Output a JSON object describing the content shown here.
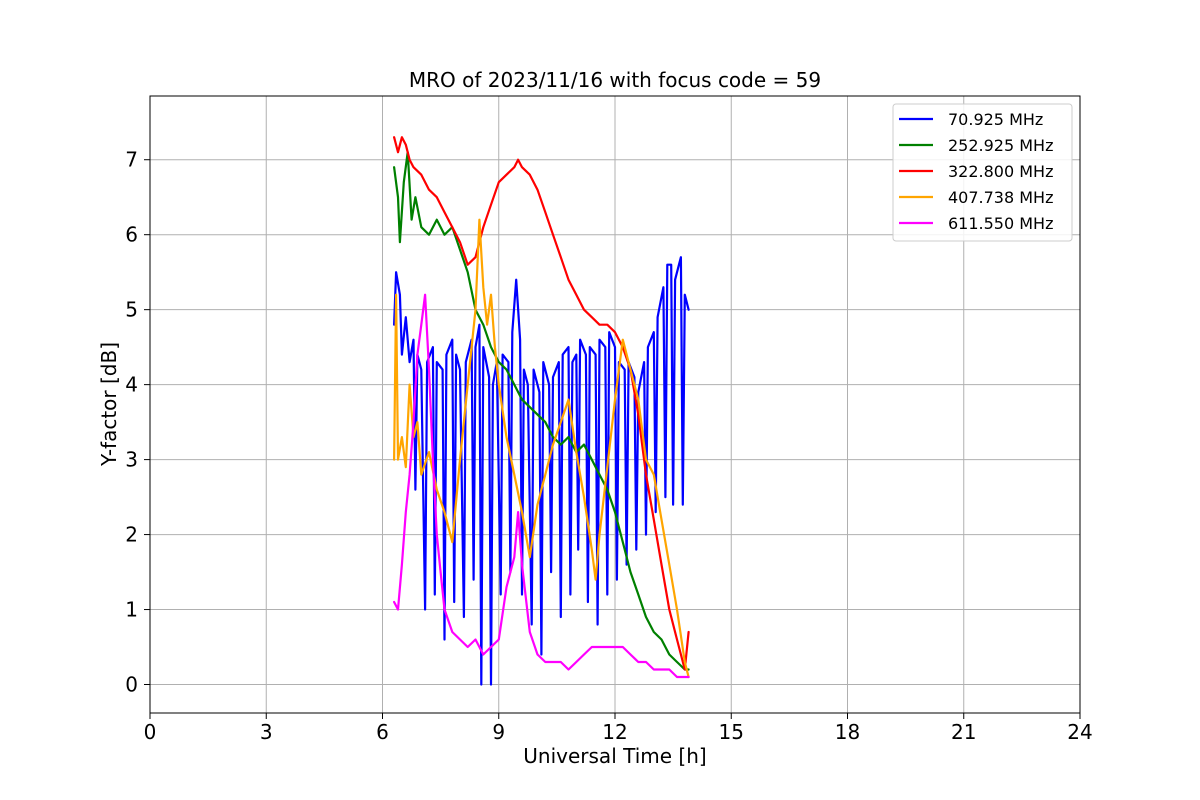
{
  "chart_data": {
    "type": "line",
    "title": "MRO of 2023/11/16 with focus code = 59",
    "xlabel": "Universal Time [h]",
    "ylabel": "Y-factor [dB]",
    "xlim": [
      0,
      24
    ],
    "ylim": [
      -0.38,
      7.85
    ],
    "xticks": [
      0,
      3,
      6,
      9,
      12,
      15,
      18,
      21,
      24
    ],
    "yticks": [
      0,
      1,
      2,
      3,
      4,
      5,
      6,
      7
    ],
    "grid": true,
    "legend": "top-right",
    "series": [
      {
        "name": " 70.925 MHz",
        "color": "#0000ff",
        "points": [
          [
            6.3,
            4.8
          ],
          [
            6.35,
            5.5
          ],
          [
            6.45,
            5.2
          ],
          [
            6.5,
            4.4
          ],
          [
            6.6,
            4.9
          ],
          [
            6.7,
            4.3
          ],
          [
            6.8,
            4.6
          ],
          [
            6.85,
            2.6
          ],
          [
            6.9,
            4.4
          ],
          [
            7.0,
            4.2
          ],
          [
            7.1,
            1.0
          ],
          [
            7.15,
            4.3
          ],
          [
            7.3,
            4.5
          ],
          [
            7.35,
            1.2
          ],
          [
            7.4,
            4.3
          ],
          [
            7.55,
            4.2
          ],
          [
            7.6,
            0.6
          ],
          [
            7.65,
            4.4
          ],
          [
            7.8,
            4.6
          ],
          [
            7.85,
            1.1
          ],
          [
            7.9,
            4.4
          ],
          [
            8.0,
            4.2
          ],
          [
            8.1,
            0.9
          ],
          [
            8.15,
            4.3
          ],
          [
            8.3,
            4.6
          ],
          [
            8.35,
            1.4
          ],
          [
            8.4,
            4.5
          ],
          [
            8.5,
            4.8
          ],
          [
            8.55,
            0.0
          ],
          [
            8.6,
            4.5
          ],
          [
            8.75,
            4.1
          ],
          [
            8.8,
            0.0
          ],
          [
            8.85,
            4.0
          ],
          [
            8.95,
            4.3
          ],
          [
            9.05,
            1.2
          ],
          [
            9.1,
            4.4
          ],
          [
            9.25,
            4.3
          ],
          [
            9.3,
            1.5
          ],
          [
            9.35,
            4.7
          ],
          [
            9.45,
            5.4
          ],
          [
            9.55,
            4.6
          ],
          [
            9.6,
            1.2
          ],
          [
            9.65,
            4.2
          ],
          [
            9.75,
            4.0
          ],
          [
            9.85,
            0.8
          ],
          [
            9.9,
            4.2
          ],
          [
            10.05,
            3.9
          ],
          [
            10.1,
            0.4
          ],
          [
            10.15,
            4.3
          ],
          [
            10.3,
            4.0
          ],
          [
            10.35,
            1.5
          ],
          [
            10.4,
            4.1
          ],
          [
            10.55,
            4.3
          ],
          [
            10.6,
            0.9
          ],
          [
            10.65,
            4.4
          ],
          [
            10.8,
            4.5
          ],
          [
            10.85,
            1.2
          ],
          [
            10.9,
            4.3
          ],
          [
            11.0,
            4.4
          ],
          [
            11.05,
            1.8
          ],
          [
            11.1,
            4.6
          ],
          [
            11.25,
            4.4
          ],
          [
            11.3,
            1.1
          ],
          [
            11.35,
            4.5
          ],
          [
            11.5,
            4.4
          ],
          [
            11.55,
            0.8
          ],
          [
            11.6,
            4.6
          ],
          [
            11.75,
            4.5
          ],
          [
            11.8,
            1.2
          ],
          [
            11.85,
            4.7
          ],
          [
            12.0,
            4.5
          ],
          [
            12.05,
            1.4
          ],
          [
            12.1,
            4.3
          ],
          [
            12.25,
            4.2
          ],
          [
            12.3,
            1.6
          ],
          [
            12.35,
            4.3
          ],
          [
            12.5,
            4.1
          ],
          [
            12.55,
            1.8
          ],
          [
            12.6,
            3.9
          ],
          [
            12.75,
            4.3
          ],
          [
            12.8,
            2.0
          ],
          [
            12.85,
            4.5
          ],
          [
            13.0,
            4.7
          ],
          [
            13.05,
            2.3
          ],
          [
            13.1,
            4.9
          ],
          [
            13.25,
            5.3
          ],
          [
            13.3,
            2.5
          ],
          [
            13.35,
            5.6
          ],
          [
            13.45,
            5.6
          ],
          [
            13.5,
            2.4
          ],
          [
            13.55,
            5.4
          ],
          [
            13.7,
            5.7
          ],
          [
            13.75,
            2.4
          ],
          [
            13.8,
            5.2
          ],
          [
            13.9,
            5.0
          ]
        ]
      },
      {
        "name": "252.925 MHz",
        "color": "#008000",
        "points": [
          [
            6.3,
            6.9
          ],
          [
            6.4,
            6.5
          ],
          [
            6.45,
            5.9
          ],
          [
            6.55,
            6.7
          ],
          [
            6.65,
            7.1
          ],
          [
            6.75,
            6.2
          ],
          [
            6.85,
            6.5
          ],
          [
            7.0,
            6.1
          ],
          [
            7.2,
            6.0
          ],
          [
            7.4,
            6.2
          ],
          [
            7.6,
            6.0
          ],
          [
            7.8,
            6.1
          ],
          [
            8.0,
            5.8
          ],
          [
            8.2,
            5.5
          ],
          [
            8.4,
            5.0
          ],
          [
            8.6,
            4.8
          ],
          [
            8.8,
            4.5
          ],
          [
            9.0,
            4.3
          ],
          [
            9.2,
            4.2
          ],
          [
            9.4,
            4.0
          ],
          [
            9.6,
            3.8
          ],
          [
            9.8,
            3.7
          ],
          [
            10.0,
            3.6
          ],
          [
            10.2,
            3.5
          ],
          [
            10.4,
            3.3
          ],
          [
            10.6,
            3.2
          ],
          [
            10.8,
            3.3
          ],
          [
            11.0,
            3.1
          ],
          [
            11.2,
            3.2
          ],
          [
            11.4,
            3.0
          ],
          [
            11.6,
            2.8
          ],
          [
            11.8,
            2.6
          ],
          [
            12.0,
            2.3
          ],
          [
            12.2,
            1.9
          ],
          [
            12.4,
            1.5
          ],
          [
            12.6,
            1.2
          ],
          [
            12.8,
            0.9
          ],
          [
            13.0,
            0.7
          ],
          [
            13.2,
            0.6
          ],
          [
            13.4,
            0.4
          ],
          [
            13.6,
            0.3
          ],
          [
            13.8,
            0.2
          ],
          [
            13.9,
            0.2
          ]
        ]
      },
      {
        "name": "322.800 MHz",
        "color": "#ff0000",
        "points": [
          [
            6.3,
            7.3
          ],
          [
            6.4,
            7.1
          ],
          [
            6.5,
            7.3
          ],
          [
            6.6,
            7.2
          ],
          [
            6.7,
            7.0
          ],
          [
            6.8,
            6.9
          ],
          [
            7.0,
            6.8
          ],
          [
            7.2,
            6.6
          ],
          [
            7.4,
            6.5
          ],
          [
            7.6,
            6.3
          ],
          [
            7.8,
            6.1
          ],
          [
            8.0,
            5.9
          ],
          [
            8.2,
            5.6
          ],
          [
            8.4,
            5.7
          ],
          [
            8.6,
            6.1
          ],
          [
            8.8,
            6.4
          ],
          [
            9.0,
            6.7
          ],
          [
            9.2,
            6.8
          ],
          [
            9.4,
            6.9
          ],
          [
            9.5,
            7.0
          ],
          [
            9.6,
            6.9
          ],
          [
            9.8,
            6.8
          ],
          [
            10.0,
            6.6
          ],
          [
            10.2,
            6.3
          ],
          [
            10.4,
            6.0
          ],
          [
            10.6,
            5.7
          ],
          [
            10.8,
            5.4
          ],
          [
            11.0,
            5.2
          ],
          [
            11.2,
            5.0
          ],
          [
            11.4,
            4.9
          ],
          [
            11.6,
            4.8
          ],
          [
            11.8,
            4.8
          ],
          [
            12.0,
            4.7
          ],
          [
            12.2,
            4.5
          ],
          [
            12.4,
            4.2
          ],
          [
            12.6,
            3.6
          ],
          [
            12.8,
            2.8
          ],
          [
            13.0,
            2.2
          ],
          [
            13.2,
            1.6
          ],
          [
            13.4,
            1.0
          ],
          [
            13.6,
            0.6
          ],
          [
            13.7,
            0.4
          ],
          [
            13.8,
            0.2
          ],
          [
            13.9,
            0.7
          ]
        ]
      },
      {
        "name": "407.738 MHz",
        "color": "#ffa500",
        "points": [
          [
            6.3,
            3.0
          ],
          [
            6.35,
            5.2
          ],
          [
            6.4,
            3.0
          ],
          [
            6.5,
            3.3
          ],
          [
            6.6,
            2.9
          ],
          [
            6.7,
            4.0
          ],
          [
            6.8,
            3.3
          ],
          [
            6.9,
            3.5
          ],
          [
            7.0,
            2.8
          ],
          [
            7.2,
            3.1
          ],
          [
            7.4,
            2.6
          ],
          [
            7.6,
            2.3
          ],
          [
            7.8,
            1.9
          ],
          [
            8.0,
            3.0
          ],
          [
            8.2,
            4.0
          ],
          [
            8.4,
            5.0
          ],
          [
            8.5,
            6.2
          ],
          [
            8.6,
            5.3
          ],
          [
            8.7,
            4.8
          ],
          [
            8.8,
            5.2
          ],
          [
            8.9,
            4.5
          ],
          [
            9.0,
            4.0
          ],
          [
            9.2,
            3.3
          ],
          [
            9.4,
            2.8
          ],
          [
            9.6,
            2.3
          ],
          [
            9.8,
            1.7
          ],
          [
            10.0,
            2.4
          ],
          [
            10.2,
            2.8
          ],
          [
            10.4,
            3.2
          ],
          [
            10.6,
            3.5
          ],
          [
            10.8,
            3.8
          ],
          [
            11.0,
            3.1
          ],
          [
            11.2,
            2.5
          ],
          [
            11.4,
            1.8
          ],
          [
            11.5,
            1.4
          ],
          [
            11.6,
            2.0
          ],
          [
            11.8,
            2.9
          ],
          [
            12.0,
            3.8
          ],
          [
            12.2,
            4.6
          ],
          [
            12.4,
            4.2
          ],
          [
            12.6,
            3.8
          ],
          [
            12.8,
            3.0
          ],
          [
            13.0,
            2.8
          ],
          [
            13.2,
            2.2
          ],
          [
            13.4,
            1.6
          ],
          [
            13.6,
            1.0
          ],
          [
            13.8,
            0.3
          ],
          [
            13.9,
            0.1
          ]
        ]
      },
      {
        "name": "611.550 MHz",
        "color": "#ff00ff",
        "points": [
          [
            6.3,
            1.1
          ],
          [
            6.4,
            1.0
          ],
          [
            6.5,
            1.6
          ],
          [
            6.6,
            2.3
          ],
          [
            6.7,
            2.8
          ],
          [
            6.8,
            3.5
          ],
          [
            6.9,
            4.4
          ],
          [
            7.0,
            4.8
          ],
          [
            7.1,
            5.2
          ],
          [
            7.2,
            4.2
          ],
          [
            7.3,
            3.0
          ],
          [
            7.4,
            2.0
          ],
          [
            7.5,
            1.5
          ],
          [
            7.6,
            1.0
          ],
          [
            7.8,
            0.7
          ],
          [
            8.0,
            0.6
          ],
          [
            8.2,
            0.5
          ],
          [
            8.4,
            0.6
          ],
          [
            8.6,
            0.4
          ],
          [
            8.8,
            0.5
          ],
          [
            9.0,
            0.6
          ],
          [
            9.2,
            1.3
          ],
          [
            9.4,
            1.7
          ],
          [
            9.5,
            2.3
          ],
          [
            9.6,
            1.6
          ],
          [
            9.8,
            0.7
          ],
          [
            10.0,
            0.4
          ],
          [
            10.2,
            0.3
          ],
          [
            10.4,
            0.3
          ],
          [
            10.6,
            0.3
          ],
          [
            10.8,
            0.2
          ],
          [
            11.0,
            0.3
          ],
          [
            11.2,
            0.4
          ],
          [
            11.4,
            0.5
          ],
          [
            11.6,
            0.5
          ],
          [
            11.8,
            0.5
          ],
          [
            12.0,
            0.5
          ],
          [
            12.2,
            0.5
          ],
          [
            12.4,
            0.4
          ],
          [
            12.6,
            0.3
          ],
          [
            12.8,
            0.3
          ],
          [
            13.0,
            0.2
          ],
          [
            13.2,
            0.2
          ],
          [
            13.4,
            0.2
          ],
          [
            13.6,
            0.1
          ],
          [
            13.8,
            0.1
          ],
          [
            13.9,
            0.1
          ]
        ]
      }
    ]
  }
}
